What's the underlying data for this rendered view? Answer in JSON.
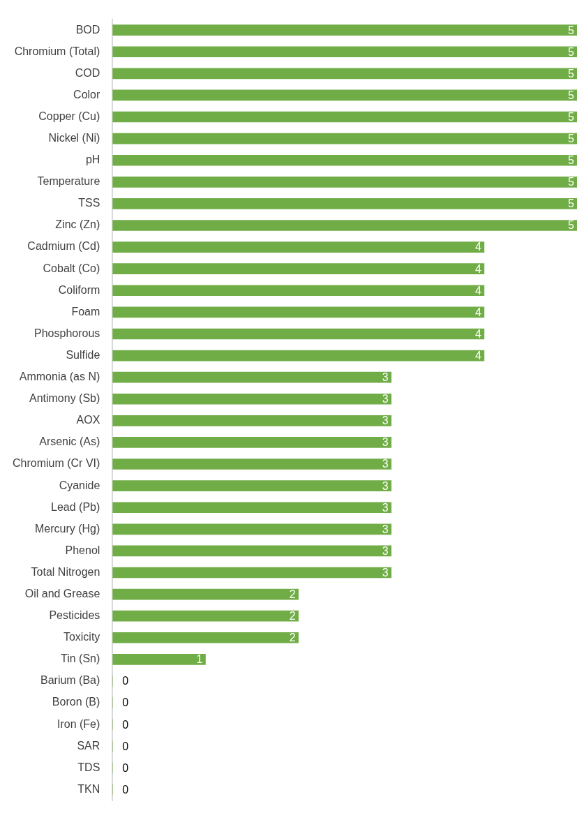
{
  "chart_data": {
    "type": "bar",
    "orientation": "horizontal",
    "data_labels": true,
    "legend": false,
    "color": "#70ad47",
    "categories": [
      "BOD",
      "Chromium (Total)",
      "COD",
      "Color",
      "Copper (Cu)",
      "Nickel (Ni)",
      "pH",
      "Temperature",
      "TSS",
      "Zinc (Zn)",
      "Cadmium (Cd)",
      "Cobalt (Co)",
      "Coliform",
      "Foam",
      "Phosphorous",
      "Sulfide",
      "Ammonia (as N)",
      "Antimony (Sb)",
      "AOX",
      "Arsenic (As)",
      "Chromium (Cr VI)",
      "Cyanide",
      "Lead (Pb)",
      "Mercury (Hg)",
      "Phenol",
      "Total Nitrogen",
      "Oil and Grease",
      "Pesticides",
      "Toxicity",
      "Tin (Sn)",
      "Barium (Ba)",
      "Boron (B)",
      "Iron (Fe)",
      "SAR",
      "TDS",
      "TKN"
    ],
    "values": [
      5,
      5,
      5,
      5,
      5,
      5,
      5,
      5,
      5,
      5,
      4,
      4,
      4,
      4,
      4,
      4,
      3,
      3,
      3,
      3,
      3,
      3,
      3,
      3,
      3,
      3,
      2,
      2,
      2,
      1,
      0,
      0,
      0,
      0,
      0,
      0
    ]
  }
}
